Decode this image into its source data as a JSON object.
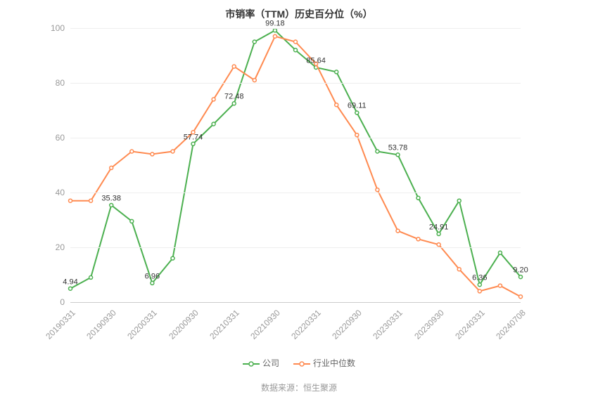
{
  "chart": {
    "type": "line",
    "title": "市销率（TTM）历史百分位（%）",
    "title_fontsize": 14,
    "title_color": "#333333",
    "background_color": "#ffffff",
    "grid_color": "#eeeeee",
    "axis_line_color": "#cccccc",
    "ylim": [
      0,
      100
    ],
    "ytick_step": 20,
    "yticks": [
      0,
      20,
      40,
      60,
      80,
      100
    ],
    "xticks": [
      "20190331",
      "20190930",
      "20200331",
      "20200930",
      "20210331",
      "20210930",
      "20220331",
      "20220930",
      "20230331",
      "20230930",
      "20240331",
      "20240708"
    ],
    "xtick_rotation": -45,
    "axis_label_fontsize": 12,
    "axis_label_color": "#999999",
    "data_label_fontsize": 11,
    "data_label_color": "#333333",
    "categories": [
      "20190331",
      "20190630",
      "20190930",
      "20191231",
      "20200331",
      "20200630",
      "20200930",
      "20201231",
      "20210331",
      "20210630",
      "20210930",
      "20211231",
      "20220331",
      "20220630",
      "20220930",
      "20221231",
      "20230331",
      "20230630",
      "20230930",
      "20231231",
      "20240331",
      "20240630",
      "20240708"
    ],
    "series": [
      {
        "name": "公司",
        "color": "#4cb050",
        "line_width": 2,
        "marker": "circle-open",
        "marker_size": 5,
        "values": [
          4.94,
          9.0,
          35.38,
          29.5,
          6.96,
          16.0,
          57.74,
          65.0,
          72.48,
          95.0,
          99.18,
          92.0,
          85.64,
          84.0,
          69.11,
          55.0,
          53.78,
          38.0,
          24.91,
          37.0,
          6.36,
          18.0,
          9.2
        ],
        "labels": [
          {
            "index": 0,
            "text": "4.94"
          },
          {
            "index": 2,
            "text": "35.38"
          },
          {
            "index": 4,
            "text": "6.96"
          },
          {
            "index": 6,
            "text": "57.74"
          },
          {
            "index": 8,
            "text": "72.48"
          },
          {
            "index": 10,
            "text": "99.18"
          },
          {
            "index": 12,
            "text": "85.64"
          },
          {
            "index": 14,
            "text": "69.11"
          },
          {
            "index": 16,
            "text": "53.78"
          },
          {
            "index": 18,
            "text": "24.91"
          },
          {
            "index": 20,
            "text": "6.36"
          },
          {
            "index": 22,
            "text": "9.20"
          }
        ]
      },
      {
        "name": "行业中位数",
        "color": "#ff8a50",
        "line_width": 2,
        "marker": "circle-open",
        "marker_size": 5,
        "values": [
          37.0,
          37.0,
          49.0,
          55.0,
          54.0,
          55.0,
          62.0,
          74.0,
          86.0,
          81.0,
          97.0,
          95.0,
          87.0,
          72.0,
          61.0,
          41.0,
          26.0,
          23.0,
          21.0,
          12.0,
          4.0,
          6.0,
          2.0
        ],
        "labels": []
      }
    ],
    "legend": {
      "position": "bottom",
      "fontsize": 12,
      "color": "#666666",
      "items": [
        {
          "label": "公司",
          "color": "#4cb050"
        },
        {
          "label": "行业中位数",
          "color": "#ff8a50"
        }
      ]
    },
    "source": {
      "text": "数据来源：恒生聚源",
      "fontsize": 12,
      "color": "#999999"
    }
  }
}
